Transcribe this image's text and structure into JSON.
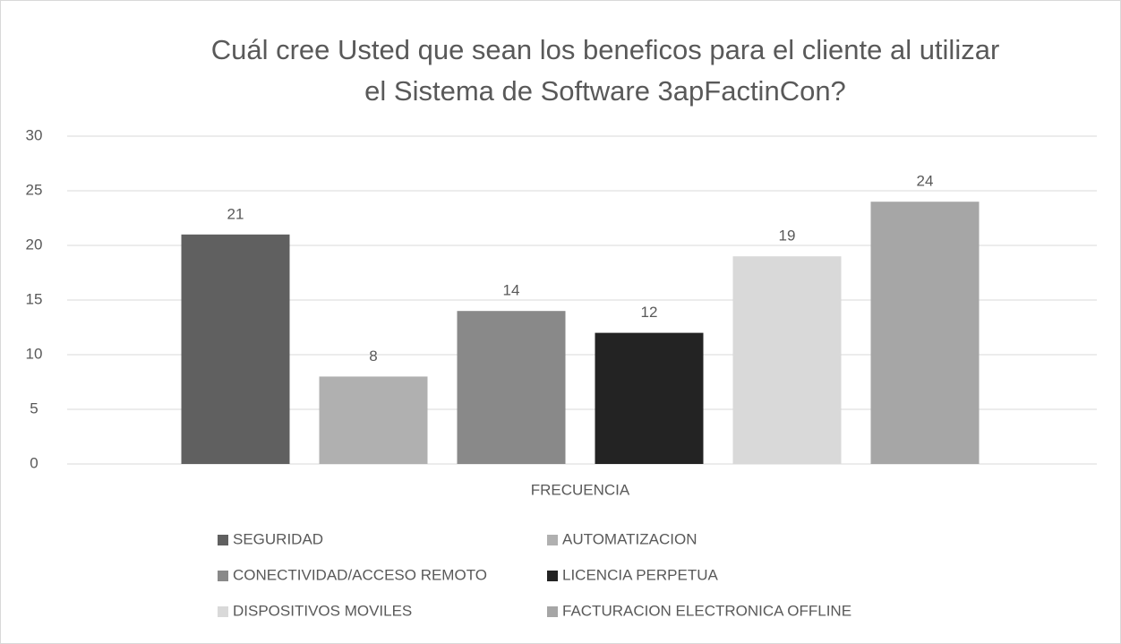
{
  "chart_data": {
    "type": "bar",
    "title": [
      "Cuál  cree Usted que sean los beneficos para el cliente al utilizar",
      "el Sistema de Software 3apFactinCon?"
    ],
    "categories": [
      "FRECUENCIA"
    ],
    "series": [
      {
        "name": "SEGURIDAD",
        "color": "#606060",
        "values": [
          21
        ]
      },
      {
        "name": "AUTOMATIZACION",
        "color": "#b0b0b0",
        "values": [
          8
        ]
      },
      {
        "name": "CONECTIVIDAD/ACCESO REMOTO",
        "color": "#898989",
        "values": [
          14
        ]
      },
      {
        "name": "LICENCIA PERPETUA",
        "color": "#232323",
        "values": [
          12
        ]
      },
      {
        "name": "DISPOSITIVOS MOVILES",
        "color": "#d9d9d9",
        "values": [
          19
        ]
      },
      {
        "name": "FACTURACION ELECTRONICA OFFLINE",
        "color": "#a6a6a6",
        "values": [
          24
        ]
      }
    ],
    "ylim": [
      0,
      30
    ],
    "yticks": [
      0,
      5,
      10,
      15,
      20,
      25,
      30
    ],
    "grid": true,
    "legend": "bottom",
    "data_labels": true
  }
}
